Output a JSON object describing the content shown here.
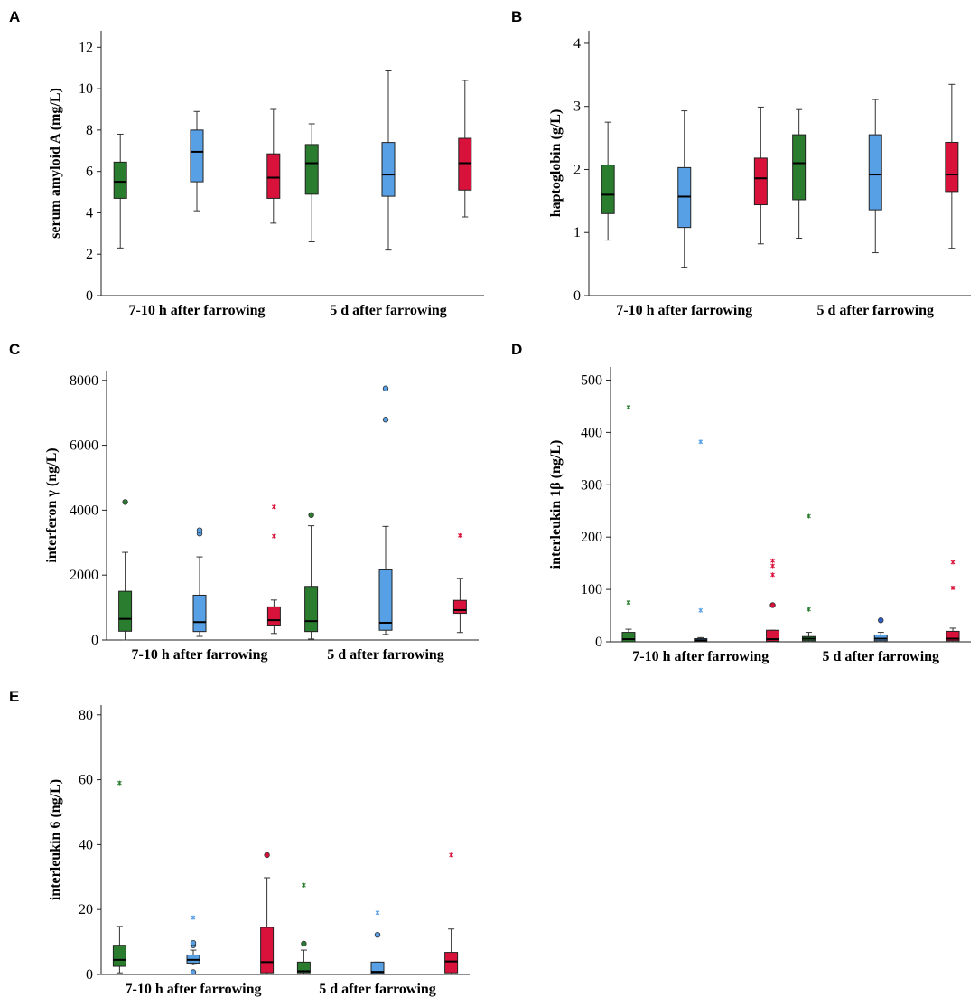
{
  "figure": {
    "series_colors": {
      "green": "#2a7d2e",
      "blue": "#58a0e6",
      "red": "#d8123a"
    },
    "outlier_blue_d": "#2e5fc9"
  },
  "chart_data": [
    {
      "panel": "A",
      "type": "box",
      "ylabel": "serum amyloid A (mg/L)",
      "ylim": [
        0,
        12.8
      ],
      "yticks": [
        0,
        2,
        4,
        6,
        8,
        10,
        12
      ],
      "ytick_labels": [
        "0",
        "2",
        "4",
        "6",
        "8",
        "10",
        "12"
      ],
      "categories": [
        "7-10 h after farrowing",
        "5 d after farrowing"
      ],
      "groups": [
        {
          "color": "green",
          "boxes": [
            {
              "min": 2.3,
              "q1": 4.7,
              "median": 5.5,
              "q3": 6.45,
              "max": 7.8
            },
            {
              "min": 2.6,
              "q1": 4.9,
              "median": 6.4,
              "q3": 7.3,
              "max": 8.3
            }
          ]
        },
        {
          "color": "blue",
          "boxes": [
            {
              "min": 4.1,
              "q1": 5.5,
              "median": 6.95,
              "q3": 8.0,
              "max": 8.9
            },
            {
              "min": 2.2,
              "q1": 4.8,
              "median": 5.85,
              "q3": 7.4,
              "max": 10.9
            }
          ]
        },
        {
          "color": "red",
          "boxes": [
            {
              "min": 3.5,
              "q1": 4.7,
              "median": 5.7,
              "q3": 6.85,
              "max": 9.0
            },
            {
              "min": 3.8,
              "q1": 5.1,
              "median": 6.4,
              "q3": 7.6,
              "max": 10.4
            }
          ]
        }
      ]
    },
    {
      "panel": "B",
      "type": "box",
      "ylabel": "haptoglobin (g/L)",
      "ylim": [
        0,
        4.2
      ],
      "yticks": [
        0,
        1,
        2,
        3,
        4
      ],
      "ytick_labels": [
        "0",
        "1",
        "2",
        "3",
        "4"
      ],
      "categories": [
        "7-10 h after farrowing",
        "5 d after farrowing"
      ],
      "groups": [
        {
          "color": "green",
          "boxes": [
            {
              "min": 0.88,
              "q1": 1.3,
              "median": 1.6,
              "q3": 2.07,
              "max": 2.75
            },
            {
              "min": 0.91,
              "q1": 1.52,
              "median": 2.1,
              "q3": 2.55,
              "max": 2.95
            }
          ]
        },
        {
          "color": "blue",
          "boxes": [
            {
              "min": 0.45,
              "q1": 1.08,
              "median": 1.57,
              "q3": 2.03,
              "max": 2.93
            },
            {
              "min": 0.68,
              "q1": 1.36,
              "median": 1.92,
              "q3": 2.55,
              "max": 3.11
            }
          ]
        },
        {
          "color": "red",
          "boxes": [
            {
              "min": 0.82,
              "q1": 1.44,
              "median": 1.86,
              "q3": 2.18,
              "max": 2.99
            },
            {
              "min": 0.75,
              "q1": 1.65,
              "median": 1.92,
              "q3": 2.43,
              "max": 3.35
            }
          ]
        }
      ]
    },
    {
      "panel": "C",
      "type": "box",
      "ylabel": "interferon γ (ng/L)",
      "ylim": [
        0,
        8300
      ],
      "yticks": [
        0,
        2000,
        4000,
        6000,
        8000
      ],
      "ytick_labels": [
        "0",
        "2000",
        "4000",
        "6000",
        "8000"
      ],
      "categories": [
        "7-10 h after farrowing",
        "5 d after farrowing"
      ],
      "groups": [
        {
          "color": "green",
          "boxes": [
            {
              "min": 0,
              "q1": 270,
              "median": 650,
              "q3": 1500,
              "max": 2700,
              "outliers": [
                4250
              ],
              "extremes": []
            },
            {
              "min": 30,
              "q1": 260,
              "median": 580,
              "q3": 1650,
              "max": 3520,
              "outliers": [
                3850
              ],
              "extremes": []
            }
          ]
        },
        {
          "color": "blue",
          "boxes": [
            {
              "min": 110,
              "q1": 260,
              "median": 550,
              "q3": 1380,
              "max": 2560,
              "outliers": [
                3280,
                3380
              ],
              "extremes": []
            },
            {
              "min": 170,
              "q1": 300,
              "median": 530,
              "q3": 2160,
              "max": 3500,
              "outliers": [
                6790,
                7750
              ],
              "extremes": []
            }
          ]
        },
        {
          "color": "red",
          "boxes": [
            {
              "min": 200,
              "q1": 460,
              "median": 610,
              "q3": 1020,
              "max": 1230,
              "outliers": [],
              "extremes": [
                3200,
                4100
              ]
            },
            {
              "min": 230,
              "q1": 820,
              "median": 920,
              "q3": 1220,
              "max": 1900,
              "outliers": [],
              "extremes": [
                3220
              ]
            }
          ]
        }
      ]
    },
    {
      "panel": "D",
      "type": "box",
      "ylabel": "interleukin 1β (ng/L)",
      "ylim": [
        0,
        525
      ],
      "yticks": [
        0,
        100,
        200,
        300,
        400,
        500
      ],
      "ytick_labels": [
        "0",
        "100",
        "200",
        "300",
        "400",
        "500"
      ],
      "categories": [
        "7-10 h after farrowing",
        "5 d after farrowing"
      ],
      "groups": [
        {
          "color": "green",
          "boxes": [
            {
              "min": 0,
              "q1": 0,
              "median": 5,
              "q3": 18,
              "max": 24,
              "outliers": [],
              "extremes": [
                75,
                448
              ]
            },
            {
              "min": 0,
              "q1": 2,
              "median": 6,
              "q3": 10,
              "max": 18,
              "outliers": [],
              "extremes": [
                62,
                240
              ]
            }
          ]
        },
        {
          "color": "blue",
          "boxes": [
            {
              "min": 0,
              "q1": 1,
              "median": 3,
              "q3": 6,
              "max": 8,
              "outliers": [],
              "extremes": [
                60,
                382
              ]
            },
            {
              "min": 0,
              "q1": 2,
              "median": 6,
              "q3": 13,
              "max": 18,
              "outliers": [
                41
              ],
              "extremes": []
            }
          ]
        },
        {
          "color": "red",
          "boxes": [
            {
              "min": 0,
              "q1": 1,
              "median": 5,
              "q3": 22,
              "max": 22,
              "outliers": [
                70
              ],
              "extremes": [
                128,
                145,
                155
              ]
            },
            {
              "min": 0,
              "q1": 2,
              "median": 6,
              "q3": 20,
              "max": 26,
              "outliers": [],
              "extremes": [
                103,
                152
              ]
            }
          ]
        }
      ]
    },
    {
      "panel": "E",
      "type": "box",
      "ylabel": "interleukin 6 (ng/L)",
      "ylim": [
        0,
        83
      ],
      "yticks": [
        0,
        20,
        40,
        60,
        80
      ],
      "ytick_labels": [
        "0",
        "20",
        "40",
        "60",
        "80"
      ],
      "categories": [
        "7-10 h after farrowing",
        "5 d after farrowing"
      ],
      "groups": [
        {
          "color": "green",
          "boxes": [
            {
              "min": 0.5,
              "q1": 2.5,
              "median": 4.5,
              "q3": 9,
              "max": 14.8,
              "outliers": [],
              "extremes": [
                59
              ]
            },
            {
              "min": 0,
              "q1": 0.5,
              "median": 1,
              "q3": 3.8,
              "max": 7.5,
              "outliers": [
                9.5
              ],
              "extremes": [
                27.5
              ]
            }
          ]
        },
        {
          "color": "blue",
          "boxes": [
            {
              "min": 3,
              "q1": 3.5,
              "median": 4.5,
              "q3": 6,
              "max": 7.5,
              "outliers": [
                0.7,
                9,
                9.7
              ],
              "extremes": [
                17.5
              ]
            },
            {
              "min": 0,
              "q1": 0.3,
              "median": 0.8,
              "q3": 3.8,
              "max": 3.8,
              "outliers": [
                12.2
              ],
              "extremes": [
                19
              ]
            }
          ]
        },
        {
          "color": "red",
          "boxes": [
            {
              "min": 0,
              "q1": 0.5,
              "median": 3.8,
              "q3": 14.5,
              "max": 29.8,
              "outliers": [
                36.8
              ],
              "extremes": []
            },
            {
              "min": 0,
              "q1": 0.5,
              "median": 4,
              "q3": 6.8,
              "max": 14,
              "outliers": [],
              "extremes": [
                36.8
              ]
            }
          ]
        }
      ]
    }
  ]
}
